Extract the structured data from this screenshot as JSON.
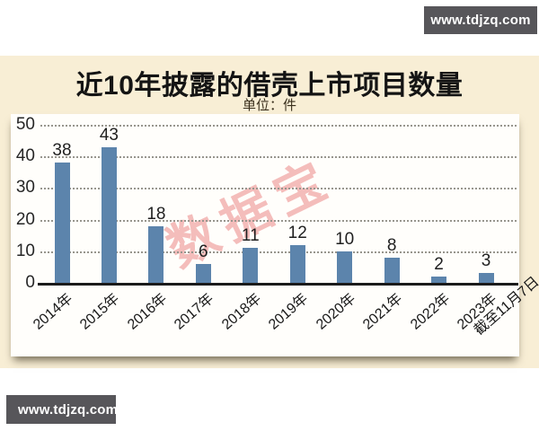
{
  "page": {
    "top_right_badge": "www.tdjzq.com",
    "bottom_left_badge": "www.tdjzq.com"
  },
  "chart_data": {
    "type": "bar",
    "title": "近10年披露的借壳上市项目数量",
    "unit_label": "单位：件",
    "categories": [
      "2014年",
      "2015年",
      "2016年",
      "2017年",
      "2018年",
      "2019年",
      "2020年",
      "2021年",
      "2022年",
      "2023年截至11月7日"
    ],
    "categories_lines": [
      [
        "2014年"
      ],
      [
        "2015年"
      ],
      [
        "2016年"
      ],
      [
        "2017年"
      ],
      [
        "2018年"
      ],
      [
        "2019年"
      ],
      [
        "2020年"
      ],
      [
        "2021年"
      ],
      [
        "2022年"
      ],
      [
        "2023年",
        "截至11月7日"
      ]
    ],
    "values": [
      38,
      43,
      18,
      6,
      11,
      12,
      10,
      8,
      2,
      3
    ],
    "xlabel": "",
    "ylabel": "",
    "ylim": [
      0,
      50
    ],
    "yticks": [
      0,
      10,
      20,
      30,
      40,
      50
    ],
    "grid": "horizontal-dotted",
    "legend": "none",
    "bar_color": "#5c84ac",
    "watermark": "数据宝",
    "watermark_color": "#e87876"
  },
  "colors": {
    "panel_background": "#f8eed5",
    "card_background": "#fffefb",
    "badge_background": "#57565a",
    "axis_color": "#1b1b1b"
  }
}
